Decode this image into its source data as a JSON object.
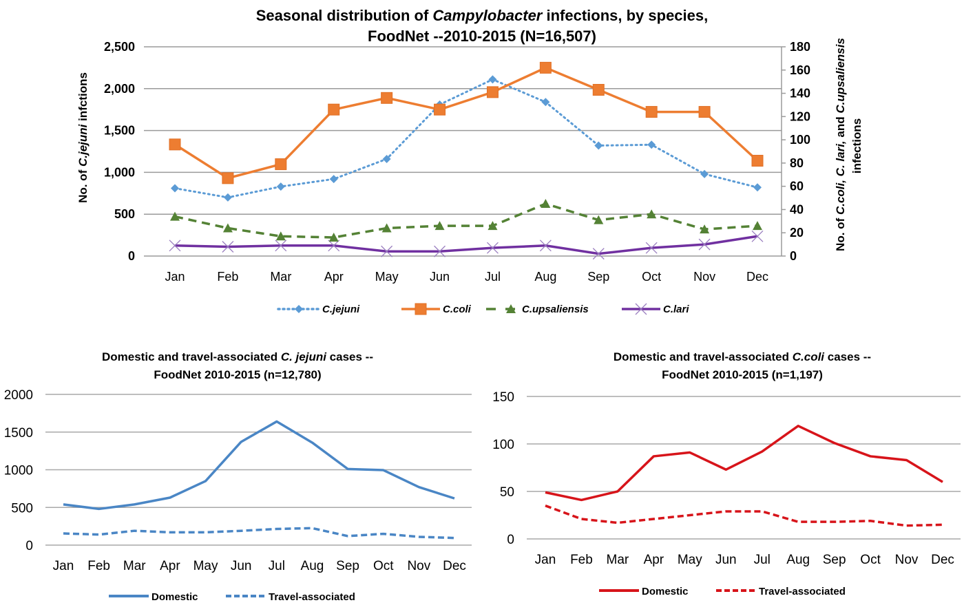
{
  "chart_data": [
    {
      "id": "top",
      "type": "line",
      "title_parts": [
        {
          "text": "Seasonal distribution of ",
          "italic": false
        },
        {
          "text": "Campylobacter",
          "italic": true
        },
        {
          "text": " infections, by species,",
          "italic": false
        }
      ],
      "title_line2": "FoodNet --2010-2015 (N=16,507)",
      "categories": [
        "Jan",
        "Feb",
        "Mar",
        "Apr",
        "May",
        "Jun",
        "Jul",
        "Aug",
        "Sep",
        "Oct",
        "Nov",
        "Dec"
      ],
      "ylabel_parts": [
        {
          "text": "No. of ",
          "italic": false
        },
        {
          "text": "C.jejuni",
          "italic": true
        },
        {
          "text": " infctions",
          "italic": false
        }
      ],
      "y2label_line1_parts": [
        {
          "text": "No. of ",
          "italic": false
        },
        {
          "text": "C.coli, C. lari,",
          "italic": true
        },
        {
          "text": " and ",
          "italic": false
        },
        {
          "text": "C.upsaliensis",
          "italic": true
        }
      ],
      "y2label_line2": "infections",
      "ylim": [
        0,
        2500
      ],
      "yticks": [
        0,
        500,
        1000,
        1500,
        2000,
        2500
      ],
      "ytick_labels": [
        "0",
        "500",
        "1,000",
        "1,500",
        "2,000",
        "2,500"
      ],
      "y2lim": [
        0,
        180
      ],
      "y2ticks": [
        0,
        20,
        40,
        60,
        80,
        100,
        120,
        140,
        160,
        180
      ],
      "grid": true,
      "legend_position": "bottom",
      "series": [
        {
          "name": "C.jejuni",
          "axis": "left",
          "color": "#5B9BD5",
          "style": "dotted",
          "marker": "diamond",
          "values": [
            810,
            700,
            830,
            920,
            1160,
            1810,
            2110,
            1840,
            1320,
            1330,
            980,
            820
          ]
        },
        {
          "name": "C.coli",
          "axis": "right",
          "color": "#ED7D31",
          "style": "solid",
          "marker": "square",
          "values": [
            96,
            67,
            79,
            126,
            136,
            126,
            141,
            162,
            143,
            124,
            124,
            82
          ]
        },
        {
          "name": "C.upsaliensis",
          "axis": "right",
          "color": "#548235",
          "style": "dashed",
          "marker": "triangle",
          "values": [
            34,
            24,
            17,
            16,
            24,
            26,
            26,
            45,
            31,
            36,
            23,
            26
          ]
        },
        {
          "name": "C.lari",
          "axis": "right",
          "color": "#7030A0",
          "style": "solid",
          "marker": "x",
          "values": [
            9,
            8,
            9,
            9,
            4,
            4,
            7,
            9,
            2,
            7,
            10,
            17
          ]
        }
      ]
    },
    {
      "id": "jejuni",
      "type": "line",
      "title_parts": [
        {
          "text": "Domestic and travel-associated ",
          "italic": false
        },
        {
          "text": "C. jejuni",
          "italic": true
        },
        {
          "text": " cases --",
          "italic": false
        }
      ],
      "title_line2": "FoodNet 2010-2015 (n=12,780)",
      "categories": [
        "Jan",
        "Feb",
        "Mar",
        "Apr",
        "May",
        "Jun",
        "Jul",
        "Aug",
        "Sep",
        "Oct",
        "Nov",
        "Dec"
      ],
      "ylim": [
        0,
        2000
      ],
      "yticks": [
        0,
        500,
        1000,
        1500,
        2000
      ],
      "ytick_labels": [
        "0",
        "500",
        "1000",
        "1500",
        "2000"
      ],
      "grid": true,
      "legend_position": "bottom",
      "series": [
        {
          "name": "Domestic",
          "color": "#4A86C5",
          "style": "solid",
          "values": [
            540,
            480,
            540,
            630,
            850,
            1370,
            1640,
            1360,
            1010,
            995,
            770,
            620
          ]
        },
        {
          "name": "Travel-associated",
          "color": "#4A86C5",
          "style": "dashed",
          "values": [
            155,
            140,
            190,
            170,
            170,
            190,
            215,
            225,
            120,
            150,
            110,
            95
          ]
        }
      ]
    },
    {
      "id": "coli",
      "type": "line",
      "title_parts": [
        {
          "text": "Domestic and travel-associated ",
          "italic": false
        },
        {
          "text": "C.coli",
          "italic": true
        },
        {
          "text": " cases --",
          "italic": false
        }
      ],
      "title_line2": "FoodNet 2010-2015 (n=1,197)",
      "categories": [
        "Jan",
        "Feb",
        "Mar",
        "Apr",
        "May",
        "Jun",
        "Jul",
        "Aug",
        "Sep",
        "Oct",
        "Nov",
        "Dec"
      ],
      "ylim": [
        0,
        150
      ],
      "yticks": [
        0,
        50,
        100,
        150
      ],
      "ytick_labels": [
        "0",
        "50",
        "100",
        "150"
      ],
      "grid": true,
      "legend_position": "bottom",
      "series": [
        {
          "name": "Domestic",
          "color": "#D7141A",
          "style": "solid",
          "values": [
            49,
            41,
            50,
            87,
            91,
            73,
            92,
            119,
            101,
            87,
            83,
            60
          ]
        },
        {
          "name": "Travel-associated",
          "color": "#D7141A",
          "style": "dashed",
          "values": [
            35,
            21,
            17,
            21,
            25,
            29,
            29,
            18,
            18,
            19,
            14,
            15
          ]
        }
      ]
    }
  ]
}
